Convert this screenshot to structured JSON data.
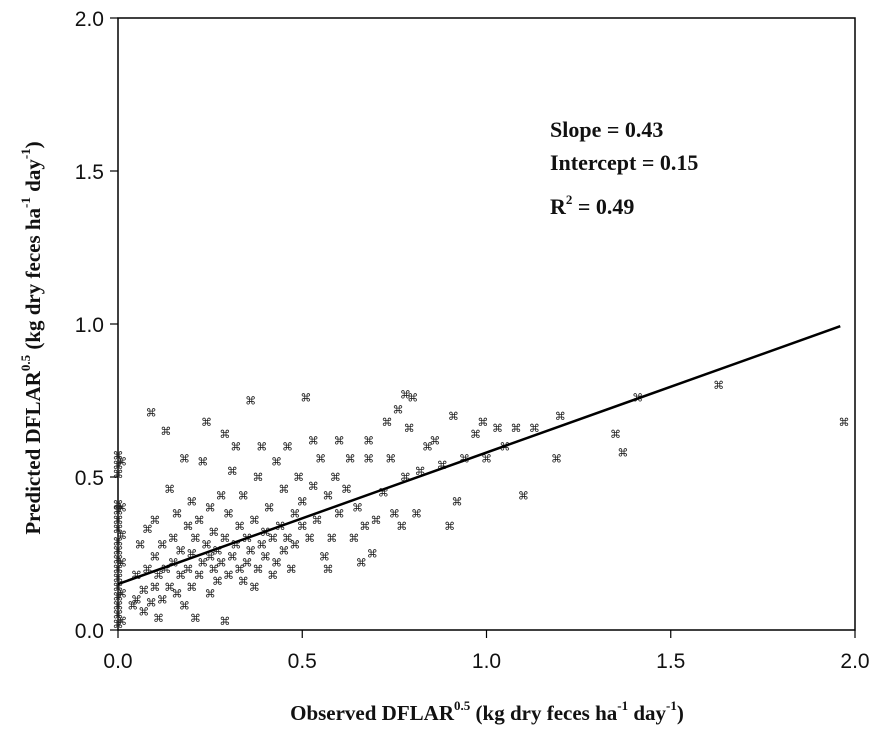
{
  "chart_data": {
    "type": "scatter",
    "title": "",
    "xlabel": {
      "main": "Observed DFLAR",
      "sup1": "0.5",
      "mid": " (kg dry feces ha",
      "sup2": "-1",
      "mid2": " day",
      "sup3": "-1",
      "end": ")"
    },
    "ylabel": {
      "main": "Predicted DFLAR",
      "sup1": "0.5",
      "mid": " (kg dry feces ha",
      "sup2": "-1",
      "mid2": " day",
      "sup3": "-1",
      "end": ")"
    },
    "xlim": [
      0.0,
      2.0
    ],
    "ylim": [
      0.0,
      2.0
    ],
    "x_ticks": [
      "0.0",
      "0.5",
      "1.0",
      "1.5",
      "2.0"
    ],
    "y_ticks": [
      "0.0",
      "0.5",
      "1.0",
      "1.5",
      "2.0"
    ],
    "grid": false,
    "marker": "⌘",
    "annotations": {
      "slope": "Slope = 0.43",
      "intercept": "Intercept = 0.15",
      "r2_prefix": "R",
      "r2_sup": "2",
      "r2_suffix": " = 0.49"
    },
    "regression_line": {
      "slope": 0.43,
      "intercept": 0.15,
      "x_range": [
        0.0,
        1.96
      ]
    },
    "points": [
      [
        0.0,
        0.02
      ],
      [
        0.0,
        0.05
      ],
      [
        0.0,
        0.08
      ],
      [
        0.0,
        0.11
      ],
      [
        0.0,
        0.14
      ],
      [
        0.0,
        0.17
      ],
      [
        0.0,
        0.2
      ],
      [
        0.0,
        0.23
      ],
      [
        0.0,
        0.26
      ],
      [
        0.0,
        0.29
      ],
      [
        0.0,
        0.33
      ],
      [
        0.0,
        0.36
      ],
      [
        0.0,
        0.39
      ],
      [
        0.0,
        0.41
      ],
      [
        0.0,
        0.51
      ],
      [
        0.0,
        0.54
      ],
      [
        0.0,
        0.57
      ],
      [
        0.01,
        0.03
      ],
      [
        0.01,
        0.12
      ],
      [
        0.01,
        0.22
      ],
      [
        0.01,
        0.31
      ],
      [
        0.01,
        0.4
      ],
      [
        0.01,
        0.55
      ],
      [
        0.04,
        0.08
      ],
      [
        0.05,
        0.1
      ],
      [
        0.05,
        0.18
      ],
      [
        0.06,
        0.28
      ],
      [
        0.07,
        0.06
      ],
      [
        0.07,
        0.13
      ],
      [
        0.08,
        0.2
      ],
      [
        0.08,
        0.33
      ],
      [
        0.09,
        0.09
      ],
      [
        0.09,
        0.71
      ],
      [
        0.1,
        0.14
      ],
      [
        0.1,
        0.24
      ],
      [
        0.1,
        0.36
      ],
      [
        0.11,
        0.18
      ],
      [
        0.11,
        0.04
      ],
      [
        0.12,
        0.1
      ],
      [
        0.12,
        0.28
      ],
      [
        0.13,
        0.2
      ],
      [
        0.13,
        0.65
      ],
      [
        0.14,
        0.14
      ],
      [
        0.14,
        0.46
      ],
      [
        0.15,
        0.22
      ],
      [
        0.15,
        0.3
      ],
      [
        0.16,
        0.12
      ],
      [
        0.16,
        0.38
      ],
      [
        0.17,
        0.18
      ],
      [
        0.17,
        0.26
      ],
      [
        0.18,
        0.08
      ],
      [
        0.18,
        0.56
      ],
      [
        0.19,
        0.2
      ],
      [
        0.19,
        0.34
      ],
      [
        0.2,
        0.14
      ],
      [
        0.2,
        0.25
      ],
      [
        0.2,
        0.42
      ],
      [
        0.21,
        0.04
      ],
      [
        0.21,
        0.3
      ],
      [
        0.22,
        0.18
      ],
      [
        0.22,
        0.36
      ],
      [
        0.23,
        0.22
      ],
      [
        0.23,
        0.55
      ],
      [
        0.24,
        0.28
      ],
      [
        0.24,
        0.68
      ],
      [
        0.25,
        0.12
      ],
      [
        0.25,
        0.24
      ],
      [
        0.25,
        0.4
      ],
      [
        0.26,
        0.2
      ],
      [
        0.26,
        0.32
      ],
      [
        0.27,
        0.16
      ],
      [
        0.27,
        0.26
      ],
      [
        0.28,
        0.44
      ],
      [
        0.28,
        0.22
      ],
      [
        0.29,
        0.64
      ],
      [
        0.29,
        0.3
      ],
      [
        0.29,
        0.03
      ],
      [
        0.3,
        0.18
      ],
      [
        0.3,
        0.38
      ],
      [
        0.31,
        0.24
      ],
      [
        0.31,
        0.52
      ],
      [
        0.32,
        0.6
      ],
      [
        0.32,
        0.28
      ],
      [
        0.33,
        0.2
      ],
      [
        0.33,
        0.34
      ],
      [
        0.34,
        0.16
      ],
      [
        0.34,
        0.44
      ],
      [
        0.35,
        0.22
      ],
      [
        0.35,
        0.3
      ],
      [
        0.36,
        0.75
      ],
      [
        0.36,
        0.26
      ],
      [
        0.37,
        0.36
      ],
      [
        0.37,
        0.14
      ],
      [
        0.38,
        0.5
      ],
      [
        0.38,
        0.2
      ],
      [
        0.39,
        0.28
      ],
      [
        0.39,
        0.6
      ],
      [
        0.4,
        0.32
      ],
      [
        0.4,
        0.24
      ],
      [
        0.41,
        0.4
      ],
      [
        0.42,
        0.18
      ],
      [
        0.42,
        0.3
      ],
      [
        0.43,
        0.55
      ],
      [
        0.43,
        0.22
      ],
      [
        0.44,
        0.34
      ],
      [
        0.45,
        0.46
      ],
      [
        0.45,
        0.26
      ],
      [
        0.46,
        0.6
      ],
      [
        0.46,
        0.3
      ],
      [
        0.47,
        0.2
      ],
      [
        0.48,
        0.38
      ],
      [
        0.48,
        0.28
      ],
      [
        0.49,
        0.5
      ],
      [
        0.5,
        0.34
      ],
      [
        0.5,
        0.42
      ],
      [
        0.51,
        0.76
      ],
      [
        0.52,
        0.3
      ],
      [
        0.53,
        0.47
      ],
      [
        0.53,
        0.62
      ],
      [
        0.54,
        0.36
      ],
      [
        0.55,
        0.56
      ],
      [
        0.56,
        0.24
      ],
      [
        0.57,
        0.44
      ],
      [
        0.57,
        0.2
      ],
      [
        0.58,
        0.3
      ],
      [
        0.59,
        0.5
      ],
      [
        0.6,
        0.62
      ],
      [
        0.6,
        0.38
      ],
      [
        0.62,
        0.46
      ],
      [
        0.63,
        0.56
      ],
      [
        0.64,
        0.3
      ],
      [
        0.65,
        0.4
      ],
      [
        0.66,
        0.22
      ],
      [
        0.67,
        0.34
      ],
      [
        0.68,
        0.56
      ],
      [
        0.68,
        0.62
      ],
      [
        0.69,
        0.25
      ],
      [
        0.7,
        0.36
      ],
      [
        0.72,
        0.45
      ],
      [
        0.73,
        0.68
      ],
      [
        0.74,
        0.56
      ],
      [
        0.75,
        0.38
      ],
      [
        0.76,
        0.72
      ],
      [
        0.77,
        0.34
      ],
      [
        0.78,
        0.5
      ],
      [
        0.78,
        0.77
      ],
      [
        0.79,
        0.66
      ],
      [
        0.8,
        0.76
      ],
      [
        0.81,
        0.38
      ],
      [
        0.82,
        0.52
      ],
      [
        0.84,
        0.6
      ],
      [
        0.86,
        0.62
      ],
      [
        0.88,
        0.54
      ],
      [
        0.9,
        0.34
      ],
      [
        0.91,
        0.7
      ],
      [
        0.92,
        0.42
      ],
      [
        0.94,
        0.56
      ],
      [
        0.97,
        0.64
      ],
      [
        0.99,
        0.68
      ],
      [
        1.0,
        0.56
      ],
      [
        1.03,
        0.66
      ],
      [
        1.05,
        0.6
      ],
      [
        1.08,
        0.66
      ],
      [
        1.1,
        0.44
      ],
      [
        1.13,
        0.66
      ],
      [
        1.19,
        0.56
      ],
      [
        1.2,
        0.7
      ],
      [
        1.35,
        0.64
      ],
      [
        1.37,
        0.58
      ],
      [
        1.41,
        0.76
      ],
      [
        1.63,
        0.8
      ],
      [
        1.97,
        0.68
      ]
    ]
  }
}
